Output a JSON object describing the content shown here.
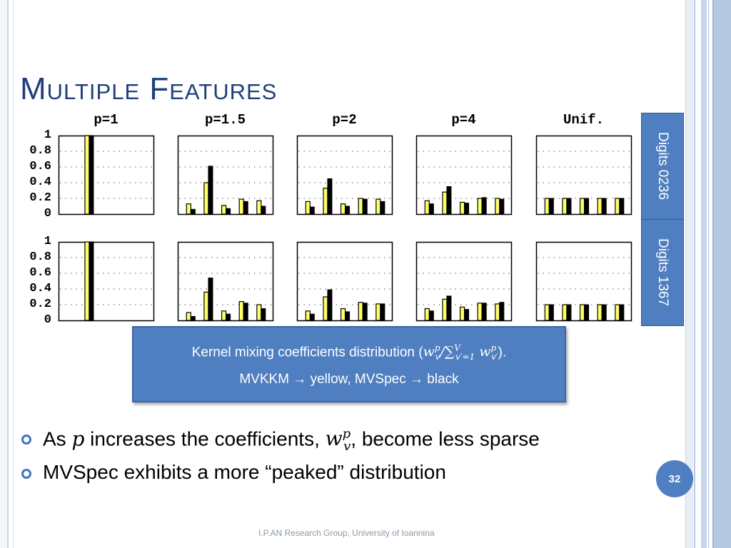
{
  "slide": {
    "title": "Multiple Features",
    "page_number": "32",
    "footer": "I.P.AN Research Group, University of Ioannina"
  },
  "row_labels": [
    "Digits 0236",
    "Digits 1367"
  ],
  "caption": {
    "line1_prefix": "Kernel mixing coefficients distribution (",
    "line1_math_num": "w",
    "line1_math_num_sub": "v",
    "line1_math_num_sup": "p",
    "line1_math_slash": "/∑",
    "line1_math_sum_sub": "v′=1",
    "line1_math_sum_sup": "V",
    "line1_math_den": "w",
    "line1_math_den_sub": "v′",
    "line1_math_den_sup": "p",
    "line1_suffix": ").",
    "line2": "MVKKM → yellow, MVSpec → black"
  },
  "bullets": [
    {
      "pre": "As ",
      "math": "p",
      "mid": " increases the coefficients, ",
      "math2": "w",
      "math2_sub": "v",
      "math2_sup": "p",
      "post": ", become less sparse"
    },
    {
      "text": "MVSpec exhibits a more “peaked” distribution"
    }
  ],
  "colors": {
    "mvkkm": "#ffff66",
    "mvspec": "#000000",
    "accent": "#4f7fc0"
  },
  "chart_data": {
    "type": "bar",
    "columns": [
      "p=1",
      "p=1.5",
      "p=2",
      "p=4",
      "Unif."
    ],
    "yticks": [
      "1",
      "0.8",
      "0.6",
      "0.4",
      "0.2",
      "0"
    ],
    "ylim": [
      0,
      1
    ],
    "legend": {
      "yellow": "MVKKM",
      "black": "MVSpec"
    },
    "rows": [
      {
        "name": "Digits 0236",
        "panels": [
          {
            "label": "p=1",
            "yellow": [
              0,
              1.0,
              0,
              0,
              0
            ],
            "black": [
              0,
              1.0,
              0,
              0,
              0
            ]
          },
          {
            "label": "p=1.5",
            "yellow": [
              0.13,
              0.4,
              0.11,
              0.19,
              0.17
            ],
            "black": [
              0.06,
              0.61,
              0.07,
              0.16,
              0.1
            ]
          },
          {
            "label": "p=2",
            "yellow": [
              0.16,
              0.33,
              0.13,
              0.2,
              0.19
            ],
            "black": [
              0.09,
              0.45,
              0.1,
              0.19,
              0.16
            ]
          },
          {
            "label": "p=4",
            "yellow": [
              0.17,
              0.28,
              0.15,
              0.2,
              0.2
            ],
            "black": [
              0.13,
              0.35,
              0.14,
              0.21,
              0.19
            ]
          },
          {
            "label": "Unif.",
            "yellow": [
              0.2,
              0.2,
              0.2,
              0.2,
              0.2
            ],
            "black": [
              0.2,
              0.2,
              0.2,
              0.2,
              0.2
            ]
          }
        ]
      },
      {
        "name": "Digits 1367",
        "panels": [
          {
            "label": "p=1",
            "yellow": [
              0,
              1.0,
              0,
              0,
              0
            ],
            "black": [
              0,
              1.0,
              0,
              0,
              0
            ]
          },
          {
            "label": "p=1.5",
            "yellow": [
              0.1,
              0.36,
              0.12,
              0.24,
              0.2
            ],
            "black": [
              0.05,
              0.54,
              0.08,
              0.22,
              0.15
            ]
          },
          {
            "label": "p=2",
            "yellow": [
              0.12,
              0.3,
              0.15,
              0.23,
              0.21
            ],
            "black": [
              0.08,
              0.39,
              0.11,
              0.22,
              0.21
            ]
          },
          {
            "label": "p=4",
            "yellow": [
              0.15,
              0.27,
              0.17,
              0.22,
              0.21
            ],
            "black": [
              0.12,
              0.31,
              0.14,
              0.22,
              0.23
            ]
          },
          {
            "label": "Unif.",
            "yellow": [
              0.2,
              0.2,
              0.2,
              0.2,
              0.2
            ],
            "black": [
              0.2,
              0.2,
              0.2,
              0.2,
              0.2
            ]
          }
        ]
      }
    ]
  }
}
